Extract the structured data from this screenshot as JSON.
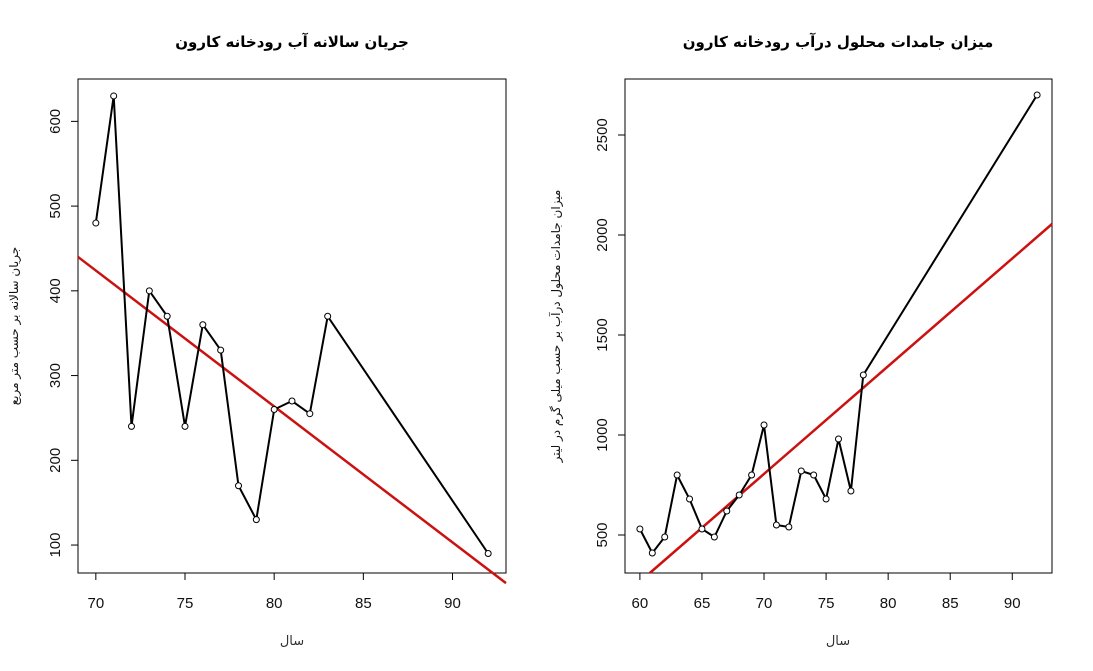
{
  "chart_data": [
    {
      "type": "line",
      "title": "جریان سالانه آب رودخانه کارون",
      "xlabel": "سال",
      "ylabel": "جریان سالانه بر حسب متر مربع",
      "xlim": [
        69,
        93
      ],
      "ylim": [
        67,
        650
      ],
      "xticks": [
        70,
        75,
        80,
        85,
        90
      ],
      "yticks": [
        100,
        200,
        300,
        400,
        500,
        600
      ],
      "series": [
        {
          "x": [
            70,
            71,
            72,
            73,
            74,
            75,
            76,
            77,
            78,
            79,
            80,
            81,
            82,
            83,
            92
          ],
          "y": [
            480,
            630,
            240,
            400,
            370,
            240,
            360,
            330,
            170,
            130,
            260,
            270,
            255,
            370,
            90
          ],
          "color": "#000000",
          "markers": "open-circle"
        }
      ],
      "trendline": {
        "x": [
          69,
          93
        ],
        "y": [
          440,
          55
        ],
        "color": "#cc1111"
      },
      "grid": false
    },
    {
      "type": "line",
      "title": "میزان جامدات محلول درآب رودخانه کارون",
      "xlabel": "سال",
      "ylabel": "میزان جامدات محلول درآب بر حسب میلی گرم در لیتر",
      "xlim": [
        58.8,
        93.2
      ],
      "ylim": [
        310,
        2780
      ],
      "xticks": [
        60,
        65,
        70,
        75,
        80,
        85,
        90
      ],
      "yticks": [
        500,
        1000,
        1500,
        2000,
        2500
      ],
      "series": [
        {
          "x": [
            60,
            61,
            62,
            63,
            64,
            65,
            66,
            67,
            68,
            69,
            70,
            71,
            72,
            73,
            74,
            75,
            76,
            77,
            78,
            92
          ],
          "y": [
            530,
            410,
            490,
            800,
            680,
            530,
            490,
            620,
            700,
            800,
            1050,
            550,
            540,
            820,
            800,
            680,
            980,
            720,
            1300,
            2700
          ],
          "color": "#000000",
          "markers": "open-circle"
        }
      ],
      "trendline": {
        "x": [
          60.8,
          93.2
        ],
        "y": [
          310,
          2055
        ],
        "color": "#cc1111"
      },
      "grid": false
    }
  ]
}
